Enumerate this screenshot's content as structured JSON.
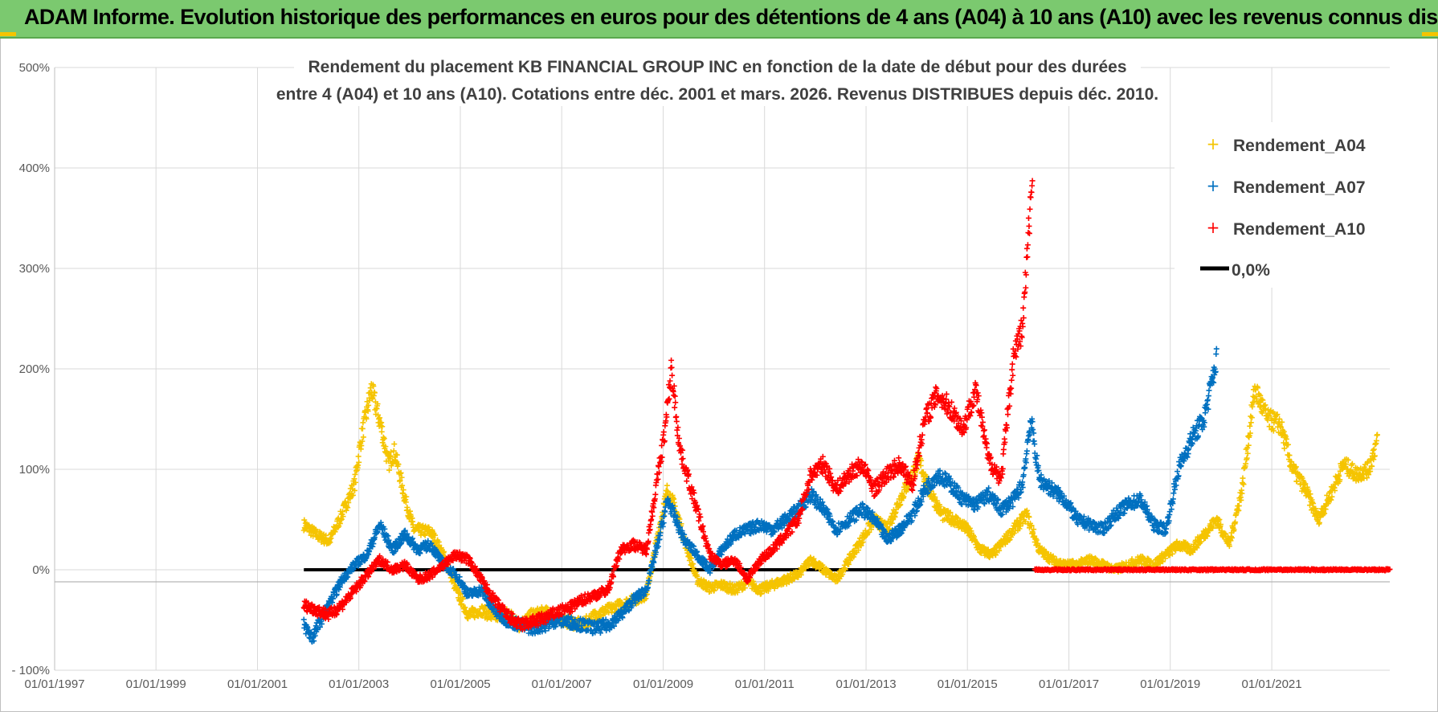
{
  "banner": {
    "title": "ADAM Informe. Evolution historique des performances en euros pour des détentions de 4 ans (A04) à 10 ans (A10) avec les revenus connus distribués"
  },
  "colors": {
    "a04": "#f5c400",
    "a07": "#0070c0",
    "a10": "#ff0000",
    "zero": "#000000",
    "grid": "#d9d9d9",
    "banner": "#7bc96f"
  },
  "chart_data": {
    "type": "scatter",
    "title_lines": [
      "Rendement du placement KB FINANCIAL GROUP INC en fonction de la date de début pour des durées",
      "entre 4 (A04) et 10 ans (A10). Cotations entre déc. 2001 et mars. 2026. Revenus DISTRIBUES depuis déc. 2010."
    ],
    "x_ticks": [
      "01/01/1997",
      "01/01/1999",
      "01/01/2001",
      "01/01/2003",
      "01/01/2005",
      "01/01/2007",
      "01/01/2009",
      "01/01/2011",
      "01/01/2013",
      "01/01/2015",
      "01/01/2017",
      "01/01/2019",
      "01/01/2021"
    ],
    "y_ticks": [
      "- 100%",
      "0%",
      "100%",
      "200%",
      "300%",
      "400%",
      "500%"
    ],
    "xlim": [
      "1997-01-01",
      "2023-05-01"
    ],
    "ylim": [
      -100,
      500
    ],
    "grid": true,
    "legend_position": "top-right",
    "legend": [
      "Rendement_A04",
      "Rendement_A07",
      "Rendement_A10",
      "0,0%"
    ],
    "series": [
      {
        "name": "Rendement_A04",
        "color": "#f5c400",
        "points": [
          [
            "2001-12-01",
            45
          ],
          [
            "2002-03-01",
            35
          ],
          [
            "2002-06-01",
            28
          ],
          [
            "2002-09-01",
            55
          ],
          [
            "2002-12-01",
            85
          ],
          [
            "2003-01-15",
            128
          ],
          [
            "2003-04-01",
            180
          ],
          [
            "2003-06-15",
            140
          ],
          [
            "2003-08-01",
            105
          ],
          [
            "2003-09-15",
            118
          ],
          [
            "2003-12-01",
            70
          ],
          [
            "2004-02-01",
            40
          ],
          [
            "2004-06-01",
            38
          ],
          [
            "2004-09-01",
            15
          ],
          [
            "2004-12-01",
            -20
          ],
          [
            "2005-03-01",
            -45
          ],
          [
            "2005-06-01",
            -40
          ],
          [
            "2005-09-01",
            -48
          ],
          [
            "2005-12-01",
            -42
          ],
          [
            "2006-03-01",
            -55
          ],
          [
            "2006-06-01",
            -45
          ],
          [
            "2006-09-01",
            -42
          ],
          [
            "2006-12-01",
            -48
          ],
          [
            "2007-03-01",
            -52
          ],
          [
            "2007-06-01",
            -55
          ],
          [
            "2007-09-01",
            -45
          ],
          [
            "2007-12-01",
            -40
          ],
          [
            "2008-03-01",
            -35
          ],
          [
            "2008-06-01",
            -30
          ],
          [
            "2008-09-01",
            -25
          ],
          [
            "2008-12-01",
            40
          ],
          [
            "2009-02-01",
            80
          ],
          [
            "2009-04-01",
            60
          ],
          [
            "2009-06-01",
            30
          ],
          [
            "2009-09-01",
            -10
          ],
          [
            "2009-12-01",
            -18
          ],
          [
            "2010-03-01",
            -15
          ],
          [
            "2010-06-01",
            -20
          ],
          [
            "2010-09-01",
            -12
          ],
          [
            "2010-12-01",
            -20
          ],
          [
            "2011-03-01",
            -15
          ],
          [
            "2011-06-01",
            -10
          ],
          [
            "2011-09-01",
            -5
          ],
          [
            "2011-12-01",
            10
          ],
          [
            "2012-03-01",
            0
          ],
          [
            "2012-06-01",
            -10
          ],
          [
            "2012-09-01",
            10
          ],
          [
            "2012-12-01",
            30
          ],
          [
            "2013-03-01",
            50
          ],
          [
            "2013-06-01",
            40
          ],
          [
            "2013-09-01",
            70
          ],
          [
            "2013-12-01",
            95
          ],
          [
            "2014-01-15",
            110
          ],
          [
            "2014-04-01",
            80
          ],
          [
            "2014-07-01",
            55
          ],
          [
            "2014-10-01",
            50
          ],
          [
            "2015-01-01",
            40
          ],
          [
            "2015-04-01",
            20
          ],
          [
            "2015-07-01",
            15
          ],
          [
            "2015-10-01",
            30
          ],
          [
            "2016-01-01",
            45
          ],
          [
            "2016-03-01",
            55
          ],
          [
            "2016-06-01",
            20
          ],
          [
            "2016-09-01",
            10
          ],
          [
            "2016-12-01",
            5
          ],
          [
            "2017-03-01",
            5
          ],
          [
            "2017-06-01",
            10
          ],
          [
            "2017-09-01",
            5
          ],
          [
            "2017-12-01",
            0
          ],
          [
            "2018-03-01",
            5
          ],
          [
            "2018-06-01",
            10
          ],
          [
            "2018-09-01",
            5
          ],
          [
            "2018-12-01",
            15
          ],
          [
            "2019-03-01",
            25
          ],
          [
            "2019-06-01",
            20
          ],
          [
            "2019-09-01",
            35
          ],
          [
            "2019-12-01",
            50
          ],
          [
            "2020-03-01",
            25
          ],
          [
            "2020-06-01",
            80
          ],
          [
            "2020-09-01",
            180
          ],
          [
            "2020-12-01",
            150
          ],
          [
            "2021-03-01",
            145
          ],
          [
            "2021-06-01",
            100
          ],
          [
            "2021-09-01",
            80
          ],
          [
            "2021-12-01",
            50
          ],
          [
            "2022-03-01",
            75
          ],
          [
            "2022-06-01",
            105
          ],
          [
            "2022-09-01",
            95
          ],
          [
            "2022-12-01",
            100
          ],
          [
            "2023-02-01",
            130
          ]
        ]
      },
      {
        "name": "Rendement_A07",
        "color": "#0070c0",
        "points": [
          [
            "2001-12-01",
            -55
          ],
          [
            "2002-02-01",
            -68
          ],
          [
            "2002-04-01",
            -50
          ],
          [
            "2002-06-01",
            -35
          ],
          [
            "2002-09-01",
            -10
          ],
          [
            "2002-12-01",
            5
          ],
          [
            "2003-03-01",
            15
          ],
          [
            "2003-06-01",
            45
          ],
          [
            "2003-09-01",
            20
          ],
          [
            "2003-12-01",
            35
          ],
          [
            "2004-03-01",
            20
          ],
          [
            "2004-06-01",
            25
          ],
          [
            "2004-09-01",
            5
          ],
          [
            "2004-12-01",
            -5
          ],
          [
            "2005-03-01",
            -25
          ],
          [
            "2005-06-01",
            -20
          ],
          [
            "2005-09-01",
            -40
          ],
          [
            "2005-12-01",
            -50
          ],
          [
            "2006-03-01",
            -55
          ],
          [
            "2006-06-01",
            -58
          ],
          [
            "2006-09-01",
            -55
          ],
          [
            "2006-12-01",
            -50
          ],
          [
            "2007-03-01",
            -52
          ],
          [
            "2007-06-01",
            -55
          ],
          [
            "2007-09-01",
            -58
          ],
          [
            "2007-12-01",
            -55
          ],
          [
            "2008-03-01",
            -45
          ],
          [
            "2008-06-01",
            -30
          ],
          [
            "2008-09-01",
            -20
          ],
          [
            "2008-12-01",
            30
          ],
          [
            "2009-02-01",
            70
          ],
          [
            "2009-04-01",
            50
          ],
          [
            "2009-06-01",
            30
          ],
          [
            "2009-09-01",
            15
          ],
          [
            "2009-12-01",
            0
          ],
          [
            "2010-03-01",
            20
          ],
          [
            "2010-06-01",
            35
          ],
          [
            "2010-09-01",
            40
          ],
          [
            "2010-12-01",
            45
          ],
          [
            "2011-03-01",
            40
          ],
          [
            "2011-06-01",
            50
          ],
          [
            "2011-09-01",
            60
          ],
          [
            "2011-12-01",
            75
          ],
          [
            "2012-03-01",
            60
          ],
          [
            "2012-06-01",
            40
          ],
          [
            "2012-09-01",
            50
          ],
          [
            "2012-12-01",
            60
          ],
          [
            "2013-03-01",
            50
          ],
          [
            "2013-06-01",
            30
          ],
          [
            "2013-09-01",
            40
          ],
          [
            "2013-12-01",
            55
          ],
          [
            "2014-03-01",
            80
          ],
          [
            "2014-06-01",
            95
          ],
          [
            "2014-09-01",
            85
          ],
          [
            "2014-12-01",
            70
          ],
          [
            "2015-03-01",
            65
          ],
          [
            "2015-06-01",
            75
          ],
          [
            "2015-09-01",
            60
          ],
          [
            "2015-12-01",
            70
          ],
          [
            "2016-02-01",
            85
          ],
          [
            "2016-04-01",
            150
          ],
          [
            "2016-06-01",
            90
          ],
          [
            "2016-09-01",
            80
          ],
          [
            "2016-12-01",
            70
          ],
          [
            "2017-03-01",
            50
          ],
          [
            "2017-06-01",
            45
          ],
          [
            "2017-09-01",
            40
          ],
          [
            "2017-12-01",
            55
          ],
          [
            "2018-03-01",
            65
          ],
          [
            "2018-06-01",
            70
          ],
          [
            "2018-09-01",
            45
          ],
          [
            "2018-12-01",
            40
          ],
          [
            "2019-03-01",
            100
          ],
          [
            "2019-06-01",
            130
          ],
          [
            "2019-09-01",
            150
          ],
          [
            "2019-12-01",
            210
          ]
        ]
      },
      {
        "name": "Rendement_A10",
        "color": "#ff0000",
        "points": [
          [
            "2001-12-01",
            -35
          ],
          [
            "2002-03-01",
            -40
          ],
          [
            "2002-06-01",
            -45
          ],
          [
            "2002-09-01",
            -35
          ],
          [
            "2002-12-01",
            -20
          ],
          [
            "2003-03-01",
            -5
          ],
          [
            "2003-06-01",
            10
          ],
          [
            "2003-09-01",
            0
          ],
          [
            "2003-12-01",
            5
          ],
          [
            "2004-03-01",
            -10
          ],
          [
            "2004-06-01",
            -5
          ],
          [
            "2004-09-01",
            5
          ],
          [
            "2004-12-01",
            15
          ],
          [
            "2005-03-01",
            10
          ],
          [
            "2005-06-01",
            -10
          ],
          [
            "2005-09-01",
            -30
          ],
          [
            "2005-12-01",
            -45
          ],
          [
            "2006-03-01",
            -55
          ],
          [
            "2006-06-01",
            -52
          ],
          [
            "2006-09-01",
            -48
          ],
          [
            "2006-12-01",
            -42
          ],
          [
            "2007-03-01",
            -38
          ],
          [
            "2007-06-01",
            -30
          ],
          [
            "2007-09-01",
            -25
          ],
          [
            "2007-12-01",
            -20
          ],
          [
            "2008-03-01",
            20
          ],
          [
            "2008-06-01",
            25
          ],
          [
            "2008-09-01",
            20
          ],
          [
            "2008-12-01",
            100
          ],
          [
            "2009-01-15",
            140
          ],
          [
            "2009-03-01",
            200
          ],
          [
            "2009-05-01",
            120
          ],
          [
            "2009-07-01",
            90
          ],
          [
            "2009-09-01",
            60
          ],
          [
            "2009-12-01",
            15
          ],
          [
            "2010-03-01",
            5
          ],
          [
            "2010-06-01",
            10
          ],
          [
            "2010-09-01",
            -10
          ],
          [
            "2010-12-01",
            10
          ],
          [
            "2011-03-01",
            20
          ],
          [
            "2011-06-01",
            35
          ],
          [
            "2011-09-01",
            50
          ],
          [
            "2011-12-01",
            95
          ],
          [
            "2012-03-01",
            105
          ],
          [
            "2012-06-01",
            80
          ],
          [
            "2012-09-01",
            95
          ],
          [
            "2012-12-01",
            105
          ],
          [
            "2013-03-01",
            80
          ],
          [
            "2013-06-01",
            95
          ],
          [
            "2013-09-01",
            105
          ],
          [
            "2013-12-01",
            85
          ],
          [
            "2014-03-01",
            150
          ],
          [
            "2014-06-01",
            175
          ],
          [
            "2014-09-01",
            160
          ],
          [
            "2014-12-01",
            140
          ],
          [
            "2015-03-01",
            180
          ],
          [
            "2015-06-01",
            110
          ],
          [
            "2015-09-01",
            90
          ],
          [
            "2015-12-01",
            215
          ],
          [
            "2016-02-01",
            240
          ],
          [
            "2016-03-15",
            330
          ],
          [
            "2016-04-15",
            400
          ]
        ]
      },
      {
        "name": "0,0%",
        "color": "#000000",
        "line": [
          [
            "2001-12-01",
            0
          ],
          [
            "2016-05-01",
            0
          ]
        ]
      }
    ],
    "zero_markers": {
      "from": "2016-05-01",
      "to": "2023-05-01",
      "value": 0,
      "color": "#ff0000"
    }
  }
}
